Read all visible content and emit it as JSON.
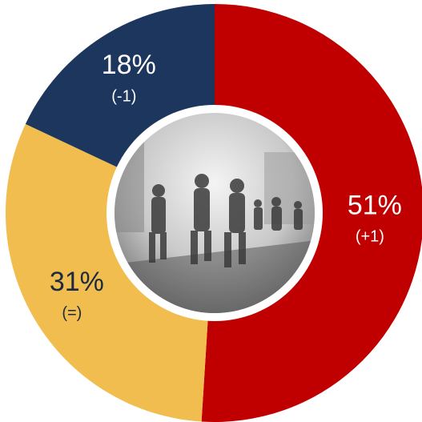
{
  "chart_data": {
    "type": "donut",
    "values": [
      51,
      31,
      18
    ],
    "value_labels": [
      "51%",
      "31%",
      "18%"
    ],
    "annotations": [
      "(+1)",
      "(=)",
      "(-1)"
    ],
    "colors": [
      "#c00000",
      "#f0bd4e",
      "#1c365e"
    ],
    "label_colors": [
      "#ffffff",
      "#1c2a40",
      "#ffffff"
    ]
  }
}
